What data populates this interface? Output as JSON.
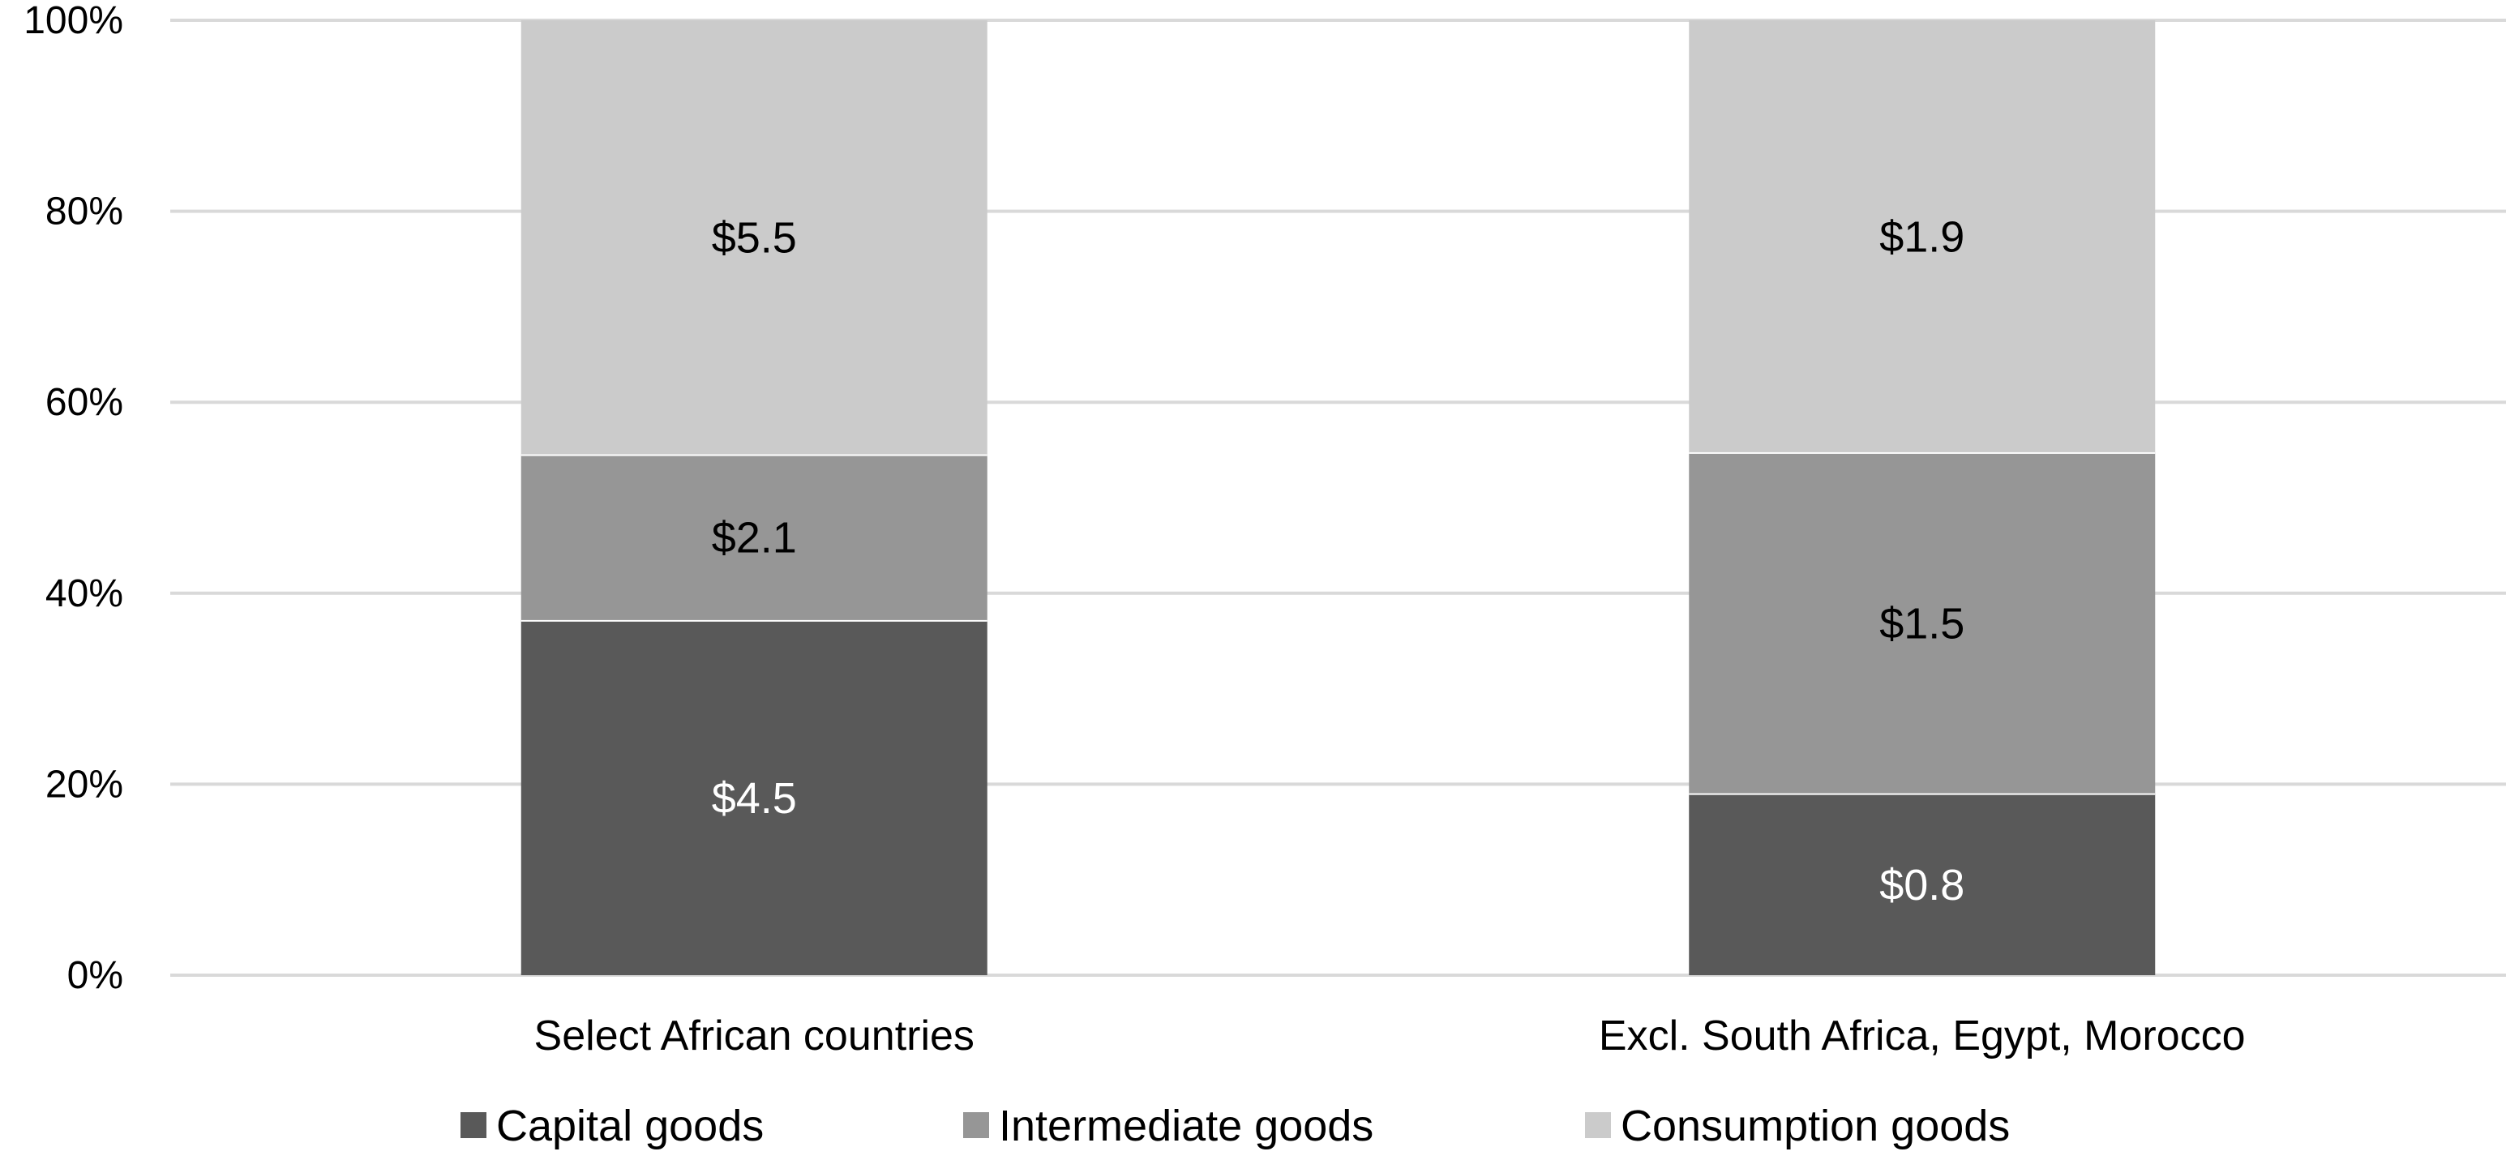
{
  "chart_data": {
    "type": "bar",
    "stacked": true,
    "percent_stacked": true,
    "title": "",
    "xlabel": "",
    "ylabel": "",
    "ylim": [
      0,
      100
    ],
    "y_ticks": [
      0,
      20,
      40,
      60,
      80,
      100
    ],
    "y_tick_labels": [
      "0%",
      "20%",
      "40%",
      "60%",
      "80%",
      "100%"
    ],
    "grid": true,
    "legend_position": "bottom",
    "categories": [
      "Select African countries",
      "Excl. South Africa, Egypt, Morocco"
    ],
    "series": [
      {
        "name": "Capital goods",
        "color": "#595959",
        "label_color": "#ffffff",
        "values": [
          4.5,
          0.8
        ],
        "labels": [
          "$4.5",
          "$0.8"
        ]
      },
      {
        "name": "Intermediate goods",
        "color": "#969696",
        "label_color": "#000000",
        "values": [
          2.1,
          1.5
        ],
        "labels": [
          "$2.1",
          "$1.5"
        ]
      },
      {
        "name": "Consumption goods",
        "color": "#cbcbcb",
        "label_color": "#000000",
        "values": [
          5.5,
          1.9
        ],
        "labels": [
          "$5.5",
          "$1.9"
        ]
      }
    ]
  }
}
